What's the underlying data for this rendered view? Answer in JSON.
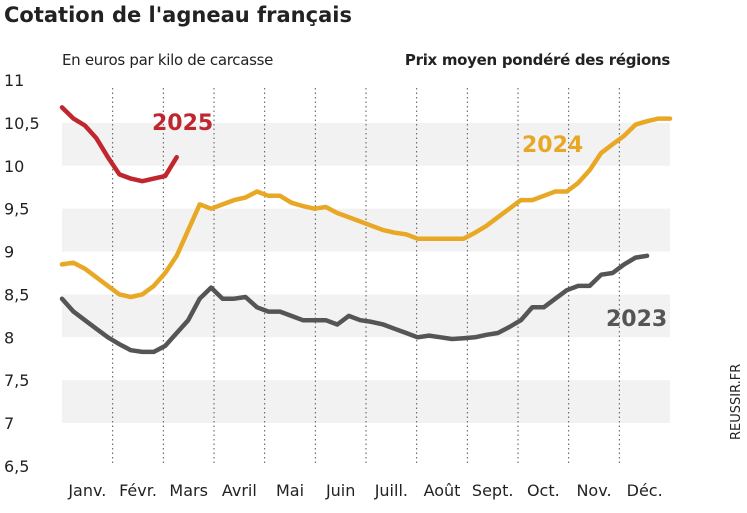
{
  "chart_data": {
    "type": "line",
    "title": "Cotation de l'agneau français",
    "subtitle_left": "En euros par kilo de carcasse",
    "subtitle_right": "Prix moyen pondéré des régions",
    "source": "REUSSIR.FR",
    "ylim": [
      6.5,
      11
    ],
    "yticks": [
      {
        "v": 11,
        "label": "11"
      },
      {
        "v": 10.5,
        "label": "10,5"
      },
      {
        "v": 10,
        "label": "10"
      },
      {
        "v": 9.5,
        "label": "9,5"
      },
      {
        "v": 9,
        "label": "9"
      },
      {
        "v": 8.5,
        "label": "8,5"
      },
      {
        "v": 8,
        "label": "8"
      },
      {
        "v": 7.5,
        "label": "7,5"
      },
      {
        "v": 7,
        "label": "7"
      },
      {
        "v": 6.5,
        "label": "6,5"
      }
    ],
    "months": [
      "Janv.",
      "Févr.",
      "Mars",
      "Avril",
      "Mai",
      "Juin",
      "Juill.",
      "Août",
      "Sept.",
      "Oct.",
      "Nov.",
      "Déc."
    ],
    "grid": "horizontal bands, dotted vertical month separators",
    "series": [
      {
        "name": "2023",
        "color": "#555555",
        "values": [
          8.45,
          8.3,
          8.2,
          8.1,
          8.0,
          7.92,
          7.85,
          7.83,
          7.83,
          7.9,
          8.05,
          8.2,
          8.45,
          8.58,
          8.45,
          8.45,
          8.47,
          8.35,
          8.3,
          8.3,
          8.25,
          8.2,
          8.2,
          8.2,
          8.15,
          8.25,
          8.2,
          8.18,
          8.15,
          8.1,
          8.05,
          8.0,
          8.02,
          8.0,
          7.98,
          7.99,
          8.0,
          8.03,
          8.05,
          8.12,
          8.2,
          8.35,
          8.35,
          8.45,
          8.55,
          8.6,
          8.6,
          8.73,
          8.75,
          8.85,
          8.93,
          8.95
        ]
      },
      {
        "name": "2024",
        "color": "#e8a825",
        "values": [
          8.85,
          8.87,
          8.8,
          8.7,
          8.6,
          8.5,
          8.47,
          8.5,
          8.6,
          8.75,
          8.95,
          9.25,
          9.55,
          9.5,
          9.55,
          9.6,
          9.63,
          9.7,
          9.65,
          9.65,
          9.57,
          9.53,
          9.5,
          9.52,
          9.45,
          9.4,
          9.35,
          9.3,
          9.25,
          9.22,
          9.2,
          9.15,
          9.15,
          9.15,
          9.15,
          9.15,
          9.22,
          9.3,
          9.4,
          9.5,
          9.6,
          9.6,
          9.65,
          9.7,
          9.7,
          9.8,
          9.95,
          10.15,
          10.25,
          10.35,
          10.48,
          10.52,
          10.55,
          10.55
        ]
      },
      {
        "name": "2025",
        "color": "#c0262d",
        "values": [
          10.68,
          10.55,
          10.47,
          10.32,
          10.1,
          9.9,
          9.85,
          9.82,
          9.85,
          9.88,
          10.1
        ]
      }
    ]
  }
}
